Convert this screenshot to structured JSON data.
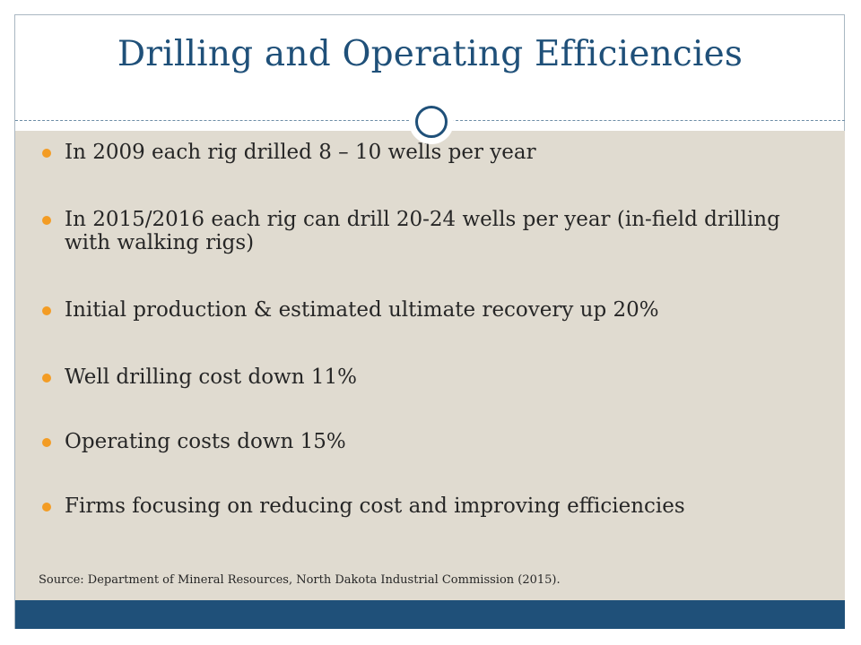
{
  "slide": {
    "title": "Drilling and Operating Efficiencies",
    "bullets": [
      "In 2009 each rig drilled 8 – 10 wells per year",
      "In 2015/2016 each rig can drill 20-24 wells per year (in-field drilling with walking rigs)",
      "Initial production & estimated ultimate recovery up 20%",
      "Well drilling cost down 11%",
      "Operating costs down 15%",
      "Firms focusing on reducing cost and improving efficiencies"
    ],
    "source": "Source:  Department of Mineral Resources, North Dakota Industrial Commission (2015)."
  },
  "colors": {
    "title": "#1f5079",
    "content_background": "#e0dbd0",
    "bullet_marker": "#f39c24",
    "footer_bar": "#1f5079"
  },
  "icons": {
    "divider_ornament": "circle-ring-icon",
    "bullet_marker": "bullet-dot-icon"
  }
}
